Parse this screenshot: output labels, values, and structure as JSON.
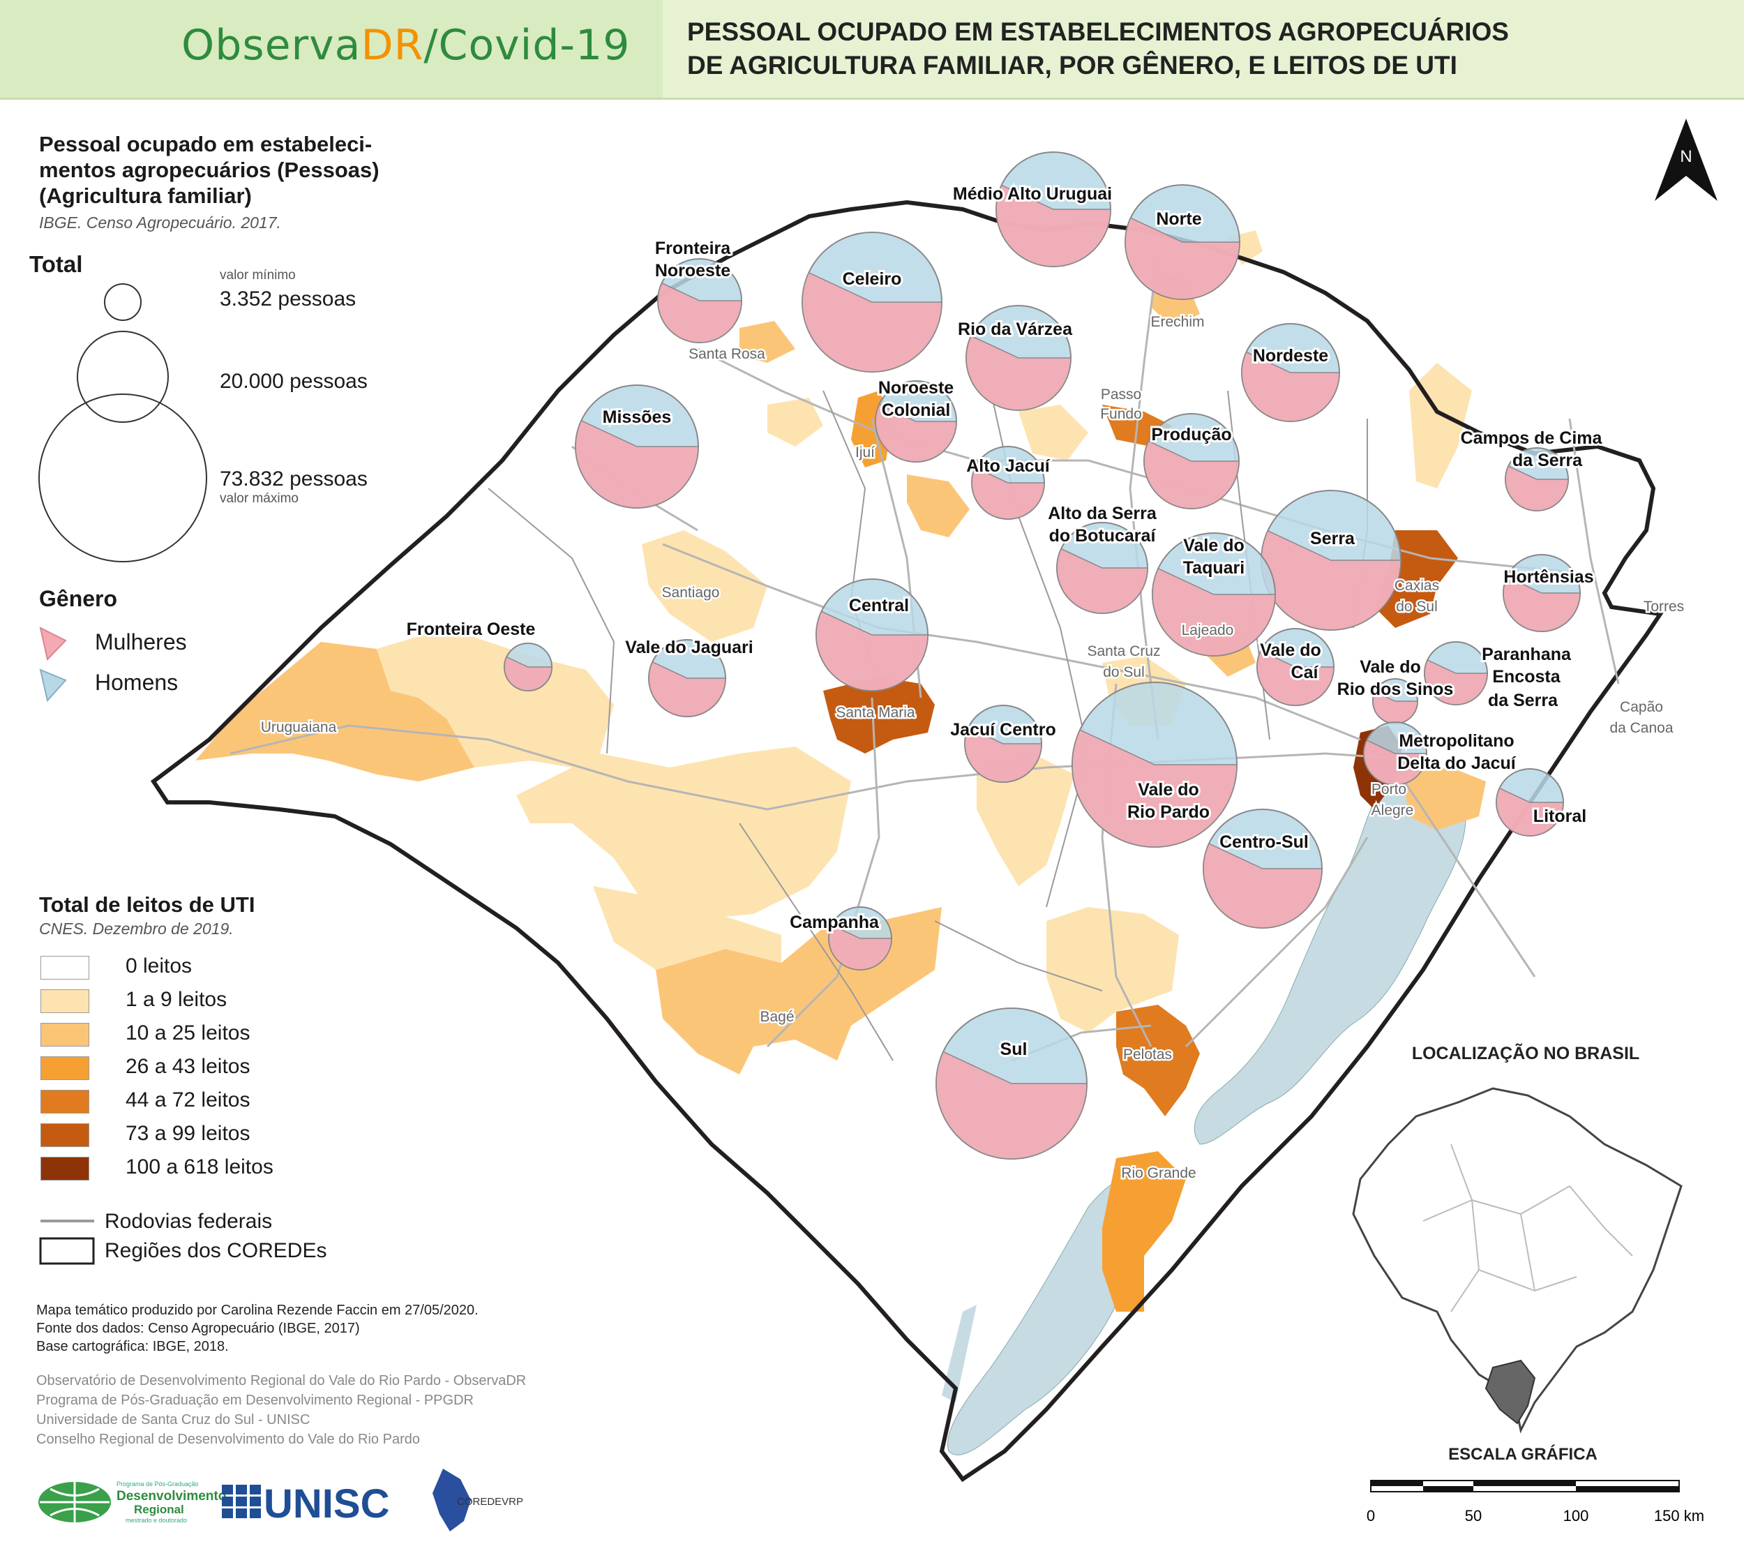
{
  "header": {
    "brand_part1": "Observa",
    "brand_part2": "DR",
    "brand_part3": "/Covid-19",
    "title_line1": "PESSOAL OCUPADO EM ESTABELECIMENTOS AGROPECUÁRIOS",
    "title_line2": "DE AGRICULTURA FAMILIAR, POR GÊNERO, E LEITOS DE UTI"
  },
  "legend_people": {
    "title_line1": "Pessoal ocupado em estabeleci-",
    "title_line2": "mentos agropecuários (Pessoas)",
    "title_line3": "(Agricultura familiar)",
    "source": "IBGE. Censo Agropecuário. 2017.",
    "total_label": "Total",
    "min_note": "valor mínimo",
    "value_min": "3.352 pessoas",
    "value_mid": "20.000 pessoas",
    "value_max": "73.832 pessoas",
    "max_note": "valor máximo",
    "gender_title": "Gênero",
    "women": "Mulheres",
    "men": "Homens",
    "women_color": "#f4a9b3",
    "men_color": "#b8d8e8"
  },
  "legend_icu": {
    "title": "Total de leitos de UTI",
    "source": "CNES. Dezembro de 2019.",
    "classes": [
      {
        "label": "0 leitos",
        "color": "#ffffff"
      },
      {
        "label": "1 a 9 leitos",
        "color": "#fde3b0"
      },
      {
        "label": "10 a 25 leitos",
        "color": "#fbc578"
      },
      {
        "label": "26 a 43 leitos",
        "color": "#f6a034"
      },
      {
        "label": "44 a 72 leitos",
        "color": "#e07b1f"
      },
      {
        "label": "73 a 99 leitos",
        "color": "#c55a11"
      },
      {
        "label": "100 a 618 leitos",
        "color": "#8e3308"
      }
    ],
    "roads": "Rodovias federais",
    "coredes": "Regiões dos COREDEs"
  },
  "credits": {
    "line1": "Mapa temático produzido por Carolina Rezende Faccin em 27/05/2020.",
    "line2": "Fonte dos dados: Censo Agropecuário (IBGE, 2017)",
    "line3": "Base cartográfica: IBGE, 2018."
  },
  "institutions": {
    "line1": "Observatório de Desenvolvimento Regional do Vale do Rio Pardo -  ObservaDR",
    "line2": "Programa de Pós-Graduação em Desenvolvimento Regional - PPGDR",
    "line3": "Universidade de Santa Cruz do Sul - UNISC",
    "line4": "Conselho Regional de Desenvolvimento do Vale do Rio Pardo"
  },
  "logos": {
    "ppgdr_top": "Programa de Pós-Graduação",
    "ppgdr_main1": "Desenvolvimento",
    "ppgdr_main2": "Regional",
    "ppgdr_sub": "mestrado e doutorado",
    "unisc": "UNISC",
    "corede": "COREDEVRP"
  },
  "map": {
    "north": "N",
    "inset_title": "LOCALIZAÇÃO NO BRASIL",
    "scale_title": "ESCALA GRÁFICA",
    "scale_ticks": [
      "0",
      "50",
      "100",
      "150 km"
    ],
    "colors": {
      "lagoon": "#c7dbe3",
      "border": "#231f20",
      "road": "#b5b5b5",
      "coredes": "#9a9a9a"
    },
    "regions": [
      {
        "name_line1": "Médio Alto Uruguai",
        "name_line2": ""
      },
      {
        "name_line1": "Norte",
        "name_line2": ""
      },
      {
        "name_line1": "Fronteira",
        "name_line2": "Noroeste"
      },
      {
        "name_line1": "Celeiro",
        "name_line2": ""
      },
      {
        "name_line1": "Rio da Várzea",
        "name_line2": ""
      },
      {
        "name_line1": "Nordeste",
        "name_line2": ""
      },
      {
        "name_line1": "Missões",
        "name_line2": ""
      },
      {
        "name_line1": "Noroeste",
        "name_line2": "Colonial"
      },
      {
        "name_line1": "Produção",
        "name_line2": ""
      },
      {
        "name_line1": "Campos de Cima",
        "name_line2": "da Serra"
      },
      {
        "name_line1": "Alto Jacuí",
        "name_line2": ""
      },
      {
        "name_line1": "Alto da Serra",
        "name_line2": "do Botucaraí"
      },
      {
        "name_line1": "Serra",
        "name_line2": ""
      },
      {
        "name_line1": "Vale do",
        "name_line2": "Taquari"
      },
      {
        "name_line1": "Hortênsias",
        "name_line2": ""
      },
      {
        "name_line1": "Central",
        "name_line2": ""
      },
      {
        "name_line1": "Fronteira Oeste",
        "name_line2": ""
      },
      {
        "name_line1": "Vale do Jaguari",
        "name_line2": ""
      },
      {
        "name_line1": "Vale do",
        "name_line2": "Caí"
      },
      {
        "name_line1": "Paranhana",
        "name_line2": "Encosta"
      },
      {
        "name_line1": "Vale do",
        "name_line2": "Rio dos Sinos"
      },
      {
        "name_line1": "Jacuí Centro",
        "name_line2": ""
      },
      {
        "name_line1": "Metropolitano",
        "name_line2": "Delta do Jacuí"
      },
      {
        "name_line1": "Vale do",
        "name_line2": "Rio Pardo"
      },
      {
        "name_line1": "Litoral",
        "name_line2": ""
      },
      {
        "name_line1": "Centro-Sul",
        "name_line2": ""
      },
      {
        "name_line1": "Campanha",
        "name_line2": ""
      },
      {
        "name_line1": "Sul",
        "name_line2": ""
      }
    ],
    "region_extra": "da Serra",
    "cities": [
      "Erechim",
      "Santa Rosa",
      "Passo",
      "Fundo",
      "Ijuí",
      "Santiago",
      "Caxias",
      "do Sul",
      "Torres",
      "Lajeado",
      "Santa Cruz",
      "do Sul",
      "Uruguaiana",
      "Santa Maria",
      "Capão",
      "da Canoa",
      "Porto",
      "Alegre",
      "Bagé",
      "Pelotas",
      "Rio Grande"
    ]
  }
}
